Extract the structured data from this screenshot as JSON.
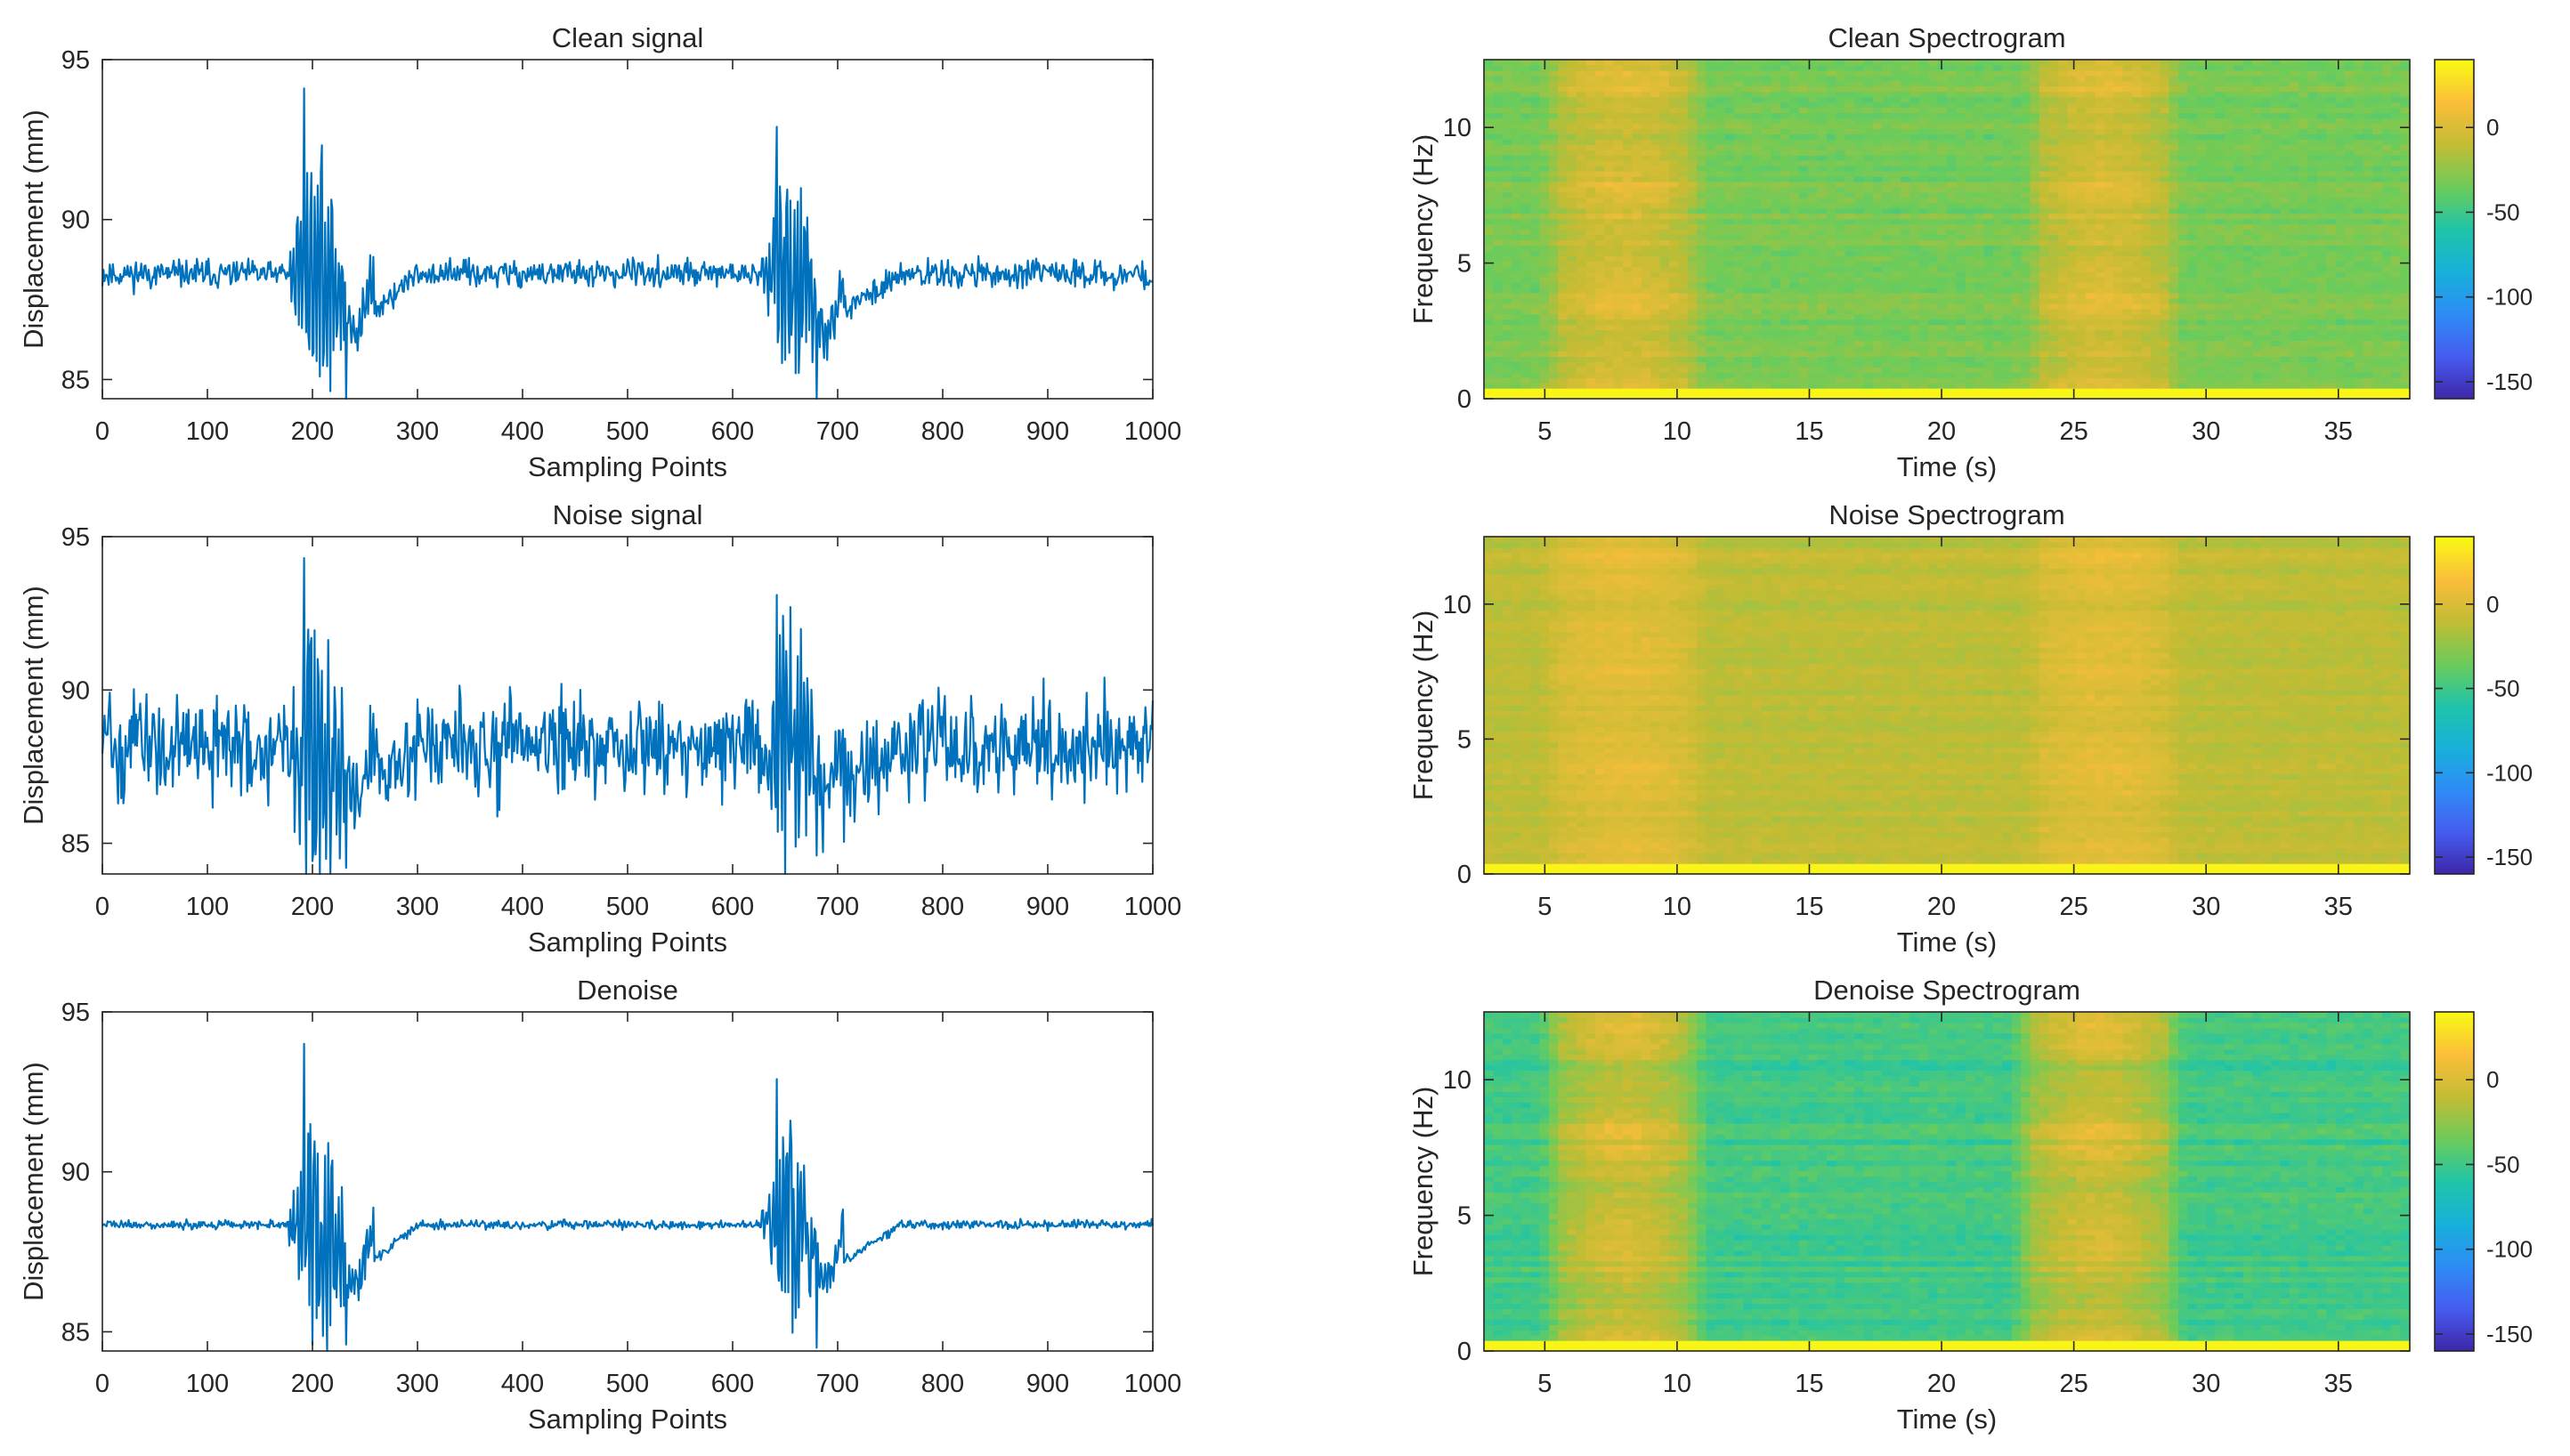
{
  "chart_data": [
    {
      "id": "clean-signal",
      "type": "line",
      "title": "Clean signal",
      "xlabel": "Sampling Points",
      "ylabel": "Displacement (mm)",
      "xlim": [
        0,
        1000
      ],
      "ylim": [
        84.4,
        95
      ],
      "xticks": [
        0,
        100,
        200,
        300,
        400,
        500,
        600,
        700,
        800,
        900,
        1000
      ],
      "yticks": [
        85,
        90,
        95
      ],
      "series": [
        {
          "name": "displacement",
          "color": "#0072BD",
          "baseline": 88.3,
          "noise": 0.3,
          "events": [
            {
              "start": 178,
              "end": 258,
              "peak": 94.1,
              "trough": 84.4,
              "settle": 300
            },
            {
              "start": 628,
              "end": 705,
              "peak": 92.9,
              "trough": 84.4,
              "settle": 760
            }
          ]
        }
      ]
    },
    {
      "id": "noise-signal",
      "type": "line",
      "title": "Noise signal",
      "xlabel": "Sampling Points",
      "ylabel": "Displacement (mm)",
      "xlim": [
        0,
        1000
      ],
      "ylim": [
        84,
        95
      ],
      "xticks": [
        0,
        100,
        200,
        300,
        400,
        500,
        600,
        700,
        800,
        900,
        1000
      ],
      "yticks": [
        85,
        90,
        95
      ],
      "series": [
        {
          "name": "displacement",
          "color": "#0072BD",
          "baseline": 88.2,
          "noise": 1.1,
          "events": [
            {
              "start": 178,
              "end": 258,
              "peak": 94.3,
              "trough": 84.2,
              "settle": 300
            },
            {
              "start": 628,
              "end": 705,
              "peak": 93.1,
              "trough": 84.6,
              "settle": 760
            }
          ]
        }
      ]
    },
    {
      "id": "denoise-signal",
      "type": "line",
      "title": "Denoise",
      "xlabel": "Sampling Points",
      "ylabel": "Displacement (mm)",
      "xlim": [
        0,
        1000
      ],
      "ylim": [
        84.4,
        95
      ],
      "xticks": [
        0,
        100,
        200,
        300,
        400,
        500,
        600,
        700,
        800,
        900,
        1000
      ],
      "yticks": [
        85,
        90,
        95
      ],
      "series": [
        {
          "name": "displacement",
          "color": "#0072BD",
          "baseline": 88.35,
          "noise": 0.1,
          "events": [
            {
              "start": 178,
              "end": 258,
              "peak": 94.0,
              "trough": 84.6,
              "settle": 300
            },
            {
              "start": 628,
              "end": 705,
              "peak": 92.9,
              "trough": 84.5,
              "settle": 760
            }
          ]
        }
      ]
    },
    {
      "id": "clean-spectrogram",
      "type": "heatmap",
      "title": "Clean Spectrogram",
      "xlabel": "Time (s)",
      "ylabel": "Frequency (Hz)",
      "xlim": [
        2.7,
        37.7
      ],
      "ylim": [
        0,
        12.5
      ],
      "xticks": [
        5,
        10,
        15,
        20,
        25,
        30,
        35
      ],
      "yticks": [
        0,
        5,
        10
      ],
      "colorbar": {
        "ticks": [
          0,
          -50,
          -100,
          -150
        ],
        "range": [
          -160,
          40
        ]
      },
      "levels": {
        "background": -32,
        "burst": 3,
        "spread": 12
      },
      "bursts": [
        {
          "t0": 5.5,
          "t1": 10.5
        },
        {
          "t0": 23.8,
          "t1": 28.5
        }
      ]
    },
    {
      "id": "noise-spectrogram",
      "type": "heatmap",
      "title": "Noise Spectrogram",
      "xlabel": "Time (s)",
      "ylabel": "Frequency (Hz)",
      "xlim": [
        2.7,
        37.7
      ],
      "ylim": [
        0,
        12.5
      ],
      "xticks": [
        5,
        10,
        15,
        20,
        25,
        30,
        35
      ],
      "yticks": [
        0,
        5,
        10
      ],
      "colorbar": {
        "ticks": [
          0,
          -50,
          -100,
          -150
        ],
        "range": [
          -160,
          40
        ]
      },
      "levels": {
        "background": -12,
        "burst": 5,
        "spread": 8
      },
      "bursts": [
        {
          "t0": 5.5,
          "t1": 10.5
        },
        {
          "t0": 23.8,
          "t1": 28.5
        }
      ]
    },
    {
      "id": "denoise-spectrogram",
      "type": "heatmap",
      "title": "Denoise Spectrogram",
      "xlabel": "Time (s)",
      "ylabel": "Frequency (Hz)",
      "xlim": [
        2.7,
        37.7
      ],
      "ylim": [
        0,
        12.5
      ],
      "xticks": [
        5,
        10,
        15,
        20,
        25,
        30,
        35
      ],
      "yticks": [
        0,
        5,
        10
      ],
      "colorbar": {
        "ticks": [
          0,
          -50,
          -100,
          -150
        ],
        "range": [
          -160,
          40
        ]
      },
      "levels": {
        "background": -48,
        "burst": 3,
        "spread": 12
      },
      "bursts": [
        {
          "t0": 5.5,
          "t1": 10.5
        },
        {
          "t0": 23.3,
          "t1": 28.5
        }
      ]
    }
  ]
}
